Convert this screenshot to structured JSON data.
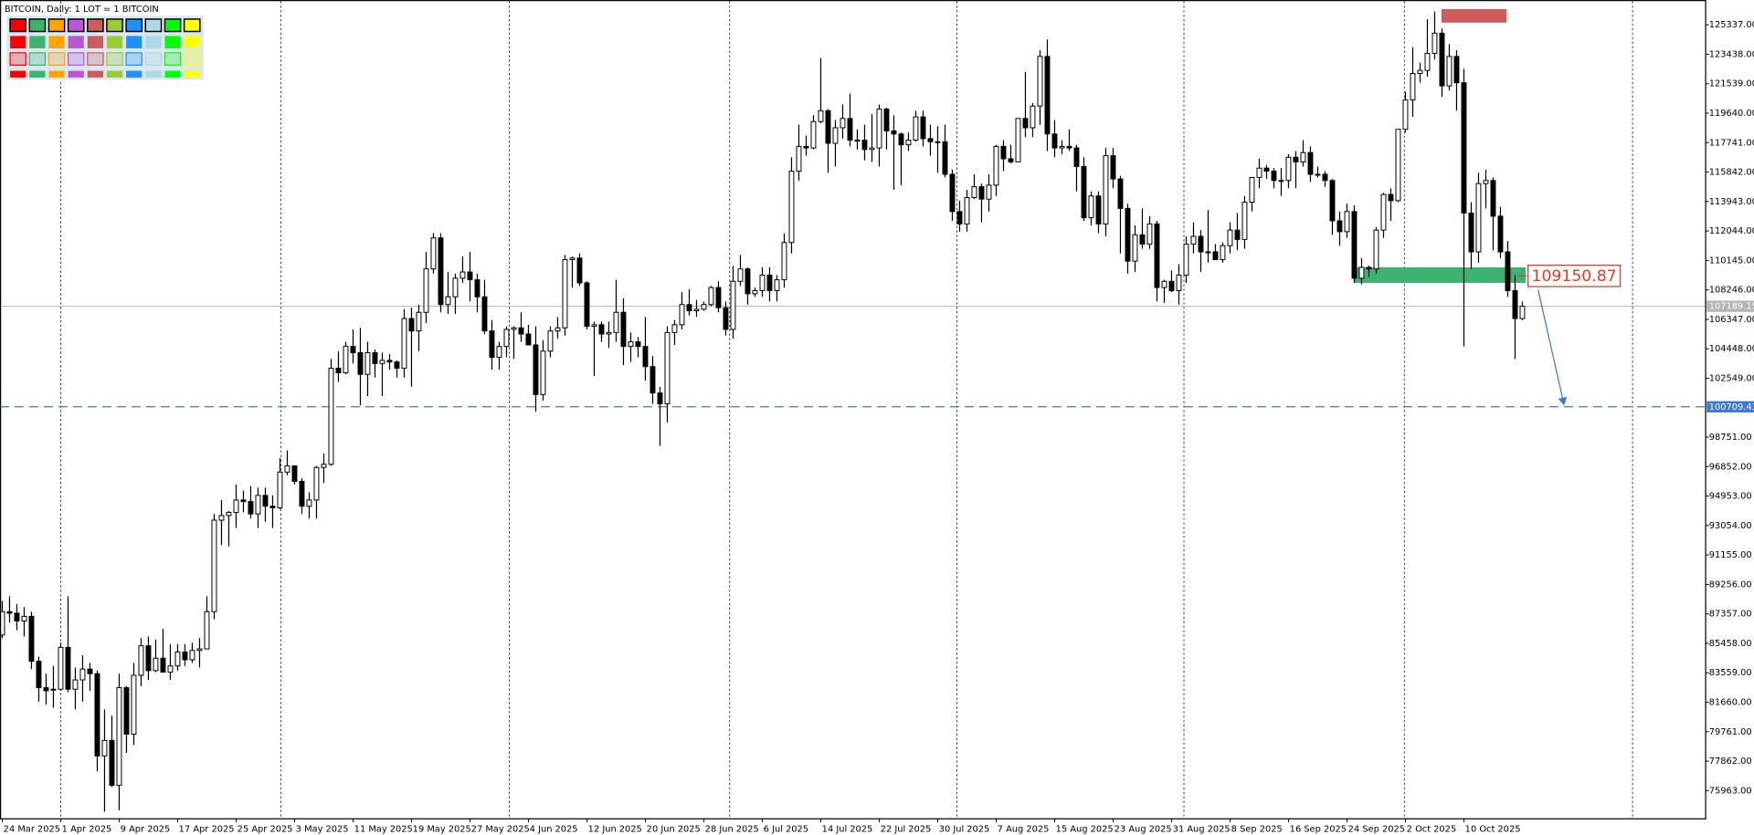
{
  "chart_data": {
    "type": "candlestick",
    "title": "BITCOIN, Daily:  1 LOT = 1 BITCOIN",
    "categories": [
      "24 Mar 2025",
      null,
      null,
      null,
      null,
      null,
      null,
      null,
      "1 Apr 2025",
      null,
      null,
      null,
      null,
      null,
      null,
      null,
      "9 Apr 2025",
      null,
      null,
      null,
      null,
      null,
      null,
      null,
      "17 Apr 2025",
      null,
      null,
      null,
      null,
      null,
      null,
      null,
      "25 Apr 2025",
      null,
      null,
      null,
      null,
      null,
      null,
      null,
      "3 May 2025",
      null,
      null,
      null,
      null,
      null,
      null,
      null,
      "11 May 2025",
      null,
      null,
      null,
      null,
      null,
      null,
      null,
      "19 May 2025",
      null,
      null,
      null,
      null,
      null,
      null,
      null,
      "27 May 2025",
      null,
      null,
      null,
      null,
      null,
      null,
      null,
      "4 Jun 2025",
      null,
      null,
      null,
      null,
      null,
      null,
      null,
      "12 Jun 2025",
      null,
      null,
      null,
      null,
      null,
      null,
      null,
      "20 Jun 2025",
      null,
      null,
      null,
      null,
      null,
      null,
      null,
      "28 Jun 2025",
      null,
      null,
      null,
      null,
      null,
      null,
      null,
      "6 Jul 2025",
      null,
      null,
      null,
      null,
      null,
      null,
      null,
      "14 Jul 2025",
      null,
      null,
      null,
      null,
      null,
      null,
      null,
      "22 Jul 2025",
      null,
      null,
      null,
      null,
      null,
      null,
      null,
      "30 Jul 2025",
      null,
      null,
      null,
      null,
      null,
      null,
      null,
      "7 Aug 2025",
      null,
      null,
      null,
      null,
      null,
      null,
      null,
      "15 Aug 2025",
      null,
      null,
      null,
      null,
      null,
      null,
      null,
      "23 Aug 2025",
      null,
      null,
      null,
      null,
      null,
      null,
      null,
      "31 Aug 2025",
      null,
      null,
      null,
      null,
      null,
      null,
      null,
      "8 Sep 2025",
      null,
      null,
      null,
      null,
      null,
      null,
      null,
      "16 Sep 2025",
      null,
      null,
      null,
      null,
      null,
      null,
      null,
      "24 Sep 2025",
      null,
      null,
      null,
      null,
      null,
      null,
      null,
      "2 Oct 2025",
      null,
      null,
      null,
      null,
      null,
      null,
      null,
      "10 Oct 2025",
      null,
      null,
      null,
      null,
      null,
      null,
      null,
      null
    ],
    "open": [
      86000,
      87500,
      87400,
      86900,
      87200,
      84300,
      82600,
      82500,
      82500,
      85200,
      82500,
      83100,
      83800,
      83500,
      78200,
      79200,
      76300,
      82600,
      79600,
      83400,
      85300,
      83700,
      84500,
      83600,
      84000,
      84900,
      84400,
      85000,
      85100,
      87500,
      93400,
      93700,
      93900,
      94700,
      94600,
      93800,
      95000,
      94300,
      94200,
      96500,
      96900,
      95900,
      94300,
      94700,
      96800,
      97000,
      103200,
      102900,
      104600,
      104200,
      102800,
      104200,
      103500,
      103700,
      103600,
      103200,
      106400,
      105600,
      106800,
      109600,
      111600,
      107300,
      107800,
      109000,
      109400,
      108900,
      107800,
      105600,
      103900,
      104600,
      105700,
      105800,
      105400,
      104700,
      101500,
      104300,
      105600,
      105800,
      110200,
      110300,
      108700,
      105900,
      106000,
      105400,
      105500,
      106800,
      104600,
      104900,
      104600,
      103300,
      101600,
      100900,
      105500,
      106000,
      107300,
      106900,
      107000,
      107300,
      108400,
      107100,
      105700,
      108800,
      109600,
      108000,
      108200,
      109200,
      108200,
      108900,
      111300,
      115900,
      117500,
      117400,
      119100,
      119800,
      117700,
      118700,
      119300,
      117900,
      117900,
      117300,
      117400,
      119900,
      118500,
      118300,
      117600,
      117900,
      119400,
      118000,
      117800,
      117800,
      115700,
      113300,
      112500,
      114200,
      114900,
      114100,
      115000,
      117500,
      116700,
      116500,
      119300,
      118700,
      120100,
      123300,
      118300,
      117400,
      117500,
      117400,
      116200,
      112900,
      114300,
      112500,
      116900,
      115400,
      113500,
      110100,
      111800,
      111200,
      112500,
      108400,
      108800,
      108200,
      109200,
      111200,
      111700,
      110700,
      110700,
      110200,
      111100,
      112100,
      111500,
      113900,
      115500,
      116100,
      115900,
      115300,
      115300,
      116800,
      116500,
      117100,
      115700,
      115700,
      115300,
      112700,
      112000,
      113300,
      109000,
      109700,
      109600,
      112100,
      114400,
      114000,
      118600,
      120500,
      122200,
      122400,
      123500,
      124800,
      121400,
      123300,
      121600,
      113200,
      110700,
      115100,
      115300,
      113000,
      110700,
      108200,
      106400
    ],
    "high": [
      88200,
      88500,
      88000,
      87800,
      87500,
      84600,
      83500,
      84000,
      85500,
      88500,
      83900,
      84700,
      84200,
      83700,
      81200,
      80800,
      83500,
      82700,
      84200,
      85800,
      85900,
      85700,
      86400,
      85400,
      85400,
      85400,
      85500,
      85800,
      88500,
      93800,
      94700,
      94000,
      95700,
      95300,
      95600,
      95500,
      95500,
      95000,
      97400,
      97900,
      96900,
      96100,
      95200,
      96900,
      97700,
      103800,
      104300,
      104900,
      105700,
      105800,
      104900,
      104400,
      104200,
      104100,
      103700,
      107000,
      107100,
      107300,
      110700,
      111900,
      111900,
      109400,
      109300,
      110400,
      110700,
      109300,
      108900,
      106300,
      104900,
      105900,
      105900,
      106800,
      106000,
      105900,
      105000,
      105900,
      106500,
      110500,
      110400,
      110600,
      108800,
      106200,
      106200,
      106200,
      108900,
      107700,
      105500,
      105200,
      106500,
      104000,
      102000,
      105900,
      106300,
      108100,
      108300,
      107600,
      107500,
      108500,
      108800,
      107500,
      109800,
      110500,
      109700,
      108400,
      109700,
      109700,
      109200,
      111900,
      116800,
      118900,
      118200,
      119500,
      123200,
      119900,
      119200,
      120200,
      120900,
      118600,
      118900,
      119600,
      120200,
      120000,
      119500,
      118400,
      118400,
      119800,
      119800,
      118900,
      118800,
      118900,
      116000,
      114000,
      114700,
      115700,
      115100,
      115700,
      117600,
      117900,
      117600,
      119300,
      122300,
      120300,
      123700,
      124400,
      119200,
      117900,
      118600,
      117600,
      116800,
      114600,
      114600,
      117400,
      117400,
      115600,
      113800,
      112400,
      113500,
      113000,
      112700,
      108900,
      109500,
      109900,
      111700,
      112600,
      112100,
      113400,
      111200,
      111300,
      112600,
      113200,
      114300,
      115500,
      116700,
      116300,
      116100,
      116100,
      117000,
      117200,
      117900,
      117500,
      116200,
      115900,
      115400,
      113300,
      113800,
      113700,
      110300,
      109800,
      112300,
      114500,
      114800,
      118600,
      121000,
      123900,
      122900,
      125700,
      126200,
      125100,
      124100,
      123700,
      122500,
      113900,
      115800,
      116000,
      115500,
      113600,
      111400,
      109200,
      107500
    ],
    "low": [
      85800,
      86800,
      86300,
      85900,
      83800,
      81700,
      81500,
      81300,
      82400,
      82300,
      81200,
      81700,
      82400,
      77200,
      74600,
      76200,
      74700,
      78400,
      78900,
      82700,
      83100,
      83600,
      83600,
      83100,
      83700,
      84000,
      84200,
      83900,
      85100,
      87000,
      91800,
      91700,
      92900,
      93900,
      93500,
      92900,
      93300,
      92900,
      94100,
      96300,
      95700,
      93800,
      93500,
      93500,
      95800,
      96900,
      102300,
      102800,
      103500,
      100800,
      101400,
      102600,
      101400,
      103100,
      102600,
      102600,
      102000,
      104300,
      106100,
      109300,
      106800,
      106700,
      106700,
      108700,
      107500,
      106800,
      105400,
      103100,
      103100,
      103900,
      103800,
      104900,
      104700,
      100400,
      101100,
      103900,
      105100,
      105300,
      108400,
      108500,
      105700,
      102700,
      104900,
      104500,
      104900,
      103400,
      103600,
      103900,
      102400,
      100900,
      98200,
      99700,
      104700,
      105700,
      106600,
      106500,
      106900,
      107200,
      106800,
      105300,
      105100,
      108500,
      107300,
      107800,
      107800,
      107500,
      107500,
      108400,
      110600,
      115300,
      116900,
      117300,
      119000,
      115800,
      116200,
      118000,
      117500,
      117300,
      116600,
      116500,
      116200,
      117300,
      114700,
      115000,
      117200,
      117800,
      117500,
      116900,
      115800,
      115500,
      112700,
      112000,
      112000,
      114100,
      112600,
      113300,
      114300,
      115900,
      116400,
      116500,
      118100,
      118100,
      118900,
      117200,
      116800,
      117000,
      117200,
      114600,
      112700,
      112400,
      111900,
      111700,
      114800,
      110600,
      109300,
      109400,
      110900,
      110900,
      107500,
      107400,
      108100,
      107300,
      108700,
      110600,
      109400,
      110000,
      110200,
      110000,
      110600,
      110800,
      110900,
      113300,
      114800,
      115400,
      114800,
      114300,
      114800,
      114800,
      116200,
      115200,
      115500,
      114900,
      111800,
      111100,
      111600,
      108700,
      108600,
      109100,
      109300,
      111600,
      112700,
      113900,
      118400,
      119400,
      121600,
      122000,
      123100,
      120700,
      121100,
      119800,
      104600,
      109600,
      110000,
      113500,
      110800,
      110300,
      107800,
      103800,
      106300
    ],
    "close": [
      87500,
      87400,
      86900,
      87200,
      84300,
      82600,
      82400,
      82500,
      85200,
      82500,
      83100,
      83800,
      83500,
      78200,
      79200,
      76300,
      82600,
      79600,
      83400,
      85300,
      83700,
      84500,
      83600,
      84000,
      84900,
      84400,
      85000,
      85100,
      87500,
      93400,
      93700,
      93900,
      94700,
      94600,
      93800,
      95000,
      94300,
      94200,
      96500,
      96900,
      95900,
      94300,
      94700,
      96800,
      97000,
      103200,
      102900,
      104600,
      104200,
      102800,
      104200,
      103500,
      103700,
      103600,
      103200,
      106400,
      105600,
      106800,
      109600,
      111600,
      107300,
      107800,
      109000,
      109400,
      108900,
      107800,
      105600,
      103900,
      104600,
      105700,
      105800,
      105400,
      104700,
      101500,
      104300,
      105600,
      105800,
      110200,
      110300,
      108700,
      105900,
      106000,
      105400,
      105500,
      106800,
      104600,
      104900,
      104600,
      103300,
      101600,
      100900,
      105500,
      106000,
      107300,
      106900,
      107000,
      107300,
      108400,
      107100,
      105700,
      108800,
      109600,
      108000,
      108200,
      109200,
      108200,
      108900,
      111300,
      115900,
      117500,
      117400,
      119100,
      119800,
      117700,
      118700,
      119300,
      117900,
      117900,
      117300,
      117400,
      119900,
      118500,
      118300,
      117600,
      117900,
      119400,
      118000,
      117800,
      117800,
      115700,
      113300,
      112500,
      114200,
      114900,
      114100,
      115000,
      117500,
      116700,
      116500,
      119300,
      118700,
      120100,
      123300,
      118300,
      117400,
      117500,
      117400,
      116200,
      112900,
      114300,
      112500,
      116900,
      115400,
      113500,
      110100,
      111800,
      111200,
      112500,
      108400,
      108800,
      108200,
      109200,
      111200,
      111700,
      110700,
      110700,
      110200,
      111100,
      112100,
      111500,
      113900,
      115500,
      116100,
      115900,
      115300,
      115300,
      116800,
      116500,
      117100,
      115700,
      115700,
      115300,
      112700,
      112000,
      113300,
      109000,
      109700,
      109600,
      112100,
      114400,
      114000,
      118600,
      120500,
      122200,
      122400,
      123500,
      124800,
      121400,
      123300,
      121600,
      113200,
      110700,
      115100,
      115300,
      113000,
      110700,
      108200,
      106400,
      107189.15
    ],
    "up_color": "#ffffff",
    "down_color": "#000000",
    "ylim": [
      74145,
      126864
    ],
    "yticks": [
      {
        "value": 125337,
        "label": "125337.00"
      },
      {
        "value": 123438,
        "label": "123438.00"
      },
      {
        "value": 121539,
        "label": "121539.00"
      },
      {
        "value": 119640,
        "label": "119640.00"
      },
      {
        "value": 117741,
        "label": "117741.00"
      },
      {
        "value": 115842,
        "label": "115842.00"
      },
      {
        "value": 113943,
        "label": "113943.00"
      },
      {
        "value": 112044,
        "label": "112044.00"
      },
      {
        "value": 110145,
        "label": "110145.00"
      },
      {
        "value": 108246,
        "label": "108246.00"
      },
      {
        "value": 106347,
        "label": "106347.00"
      },
      {
        "value": 104448,
        "label": "104448.00"
      },
      {
        "value": 102549,
        "label": "102549.00"
      },
      {
        "value": 98751,
        "label": "98751.00"
      },
      {
        "value": 96852,
        "label": "96852.00"
      },
      {
        "value": 94953,
        "label": "94953.00"
      },
      {
        "value": 93054,
        "label": "93054.00"
      },
      {
        "value": 91155,
        "label": "91155.00"
      },
      {
        "value": 89256,
        "label": "89256.00"
      },
      {
        "value": 87357,
        "label": "87357.00"
      },
      {
        "value": 85458,
        "label": "85458.00"
      },
      {
        "value": 83559,
        "label": "83559.00"
      },
      {
        "value": 81660,
        "label": "81660.00"
      },
      {
        "value": 79761,
        "label": "79761.00"
      },
      {
        "value": 77862,
        "label": "77862.00"
      },
      {
        "value": 75963,
        "label": "75963.00"
      }
    ],
    "current_price": 107189.15,
    "current_price_color": "#b4b4b4",
    "target_line": 100709.43,
    "target_color": "#3c78d8",
    "entry_label": 109150.87,
    "entry_color": "#e53a1f",
    "zones": [
      {
        "top": 126350,
        "bottom": 125480,
        "color": "#cd5c5c"
      },
      {
        "top": 109700,
        "bottom": 108700,
        "color": "#3cb371"
      }
    ]
  }
}
